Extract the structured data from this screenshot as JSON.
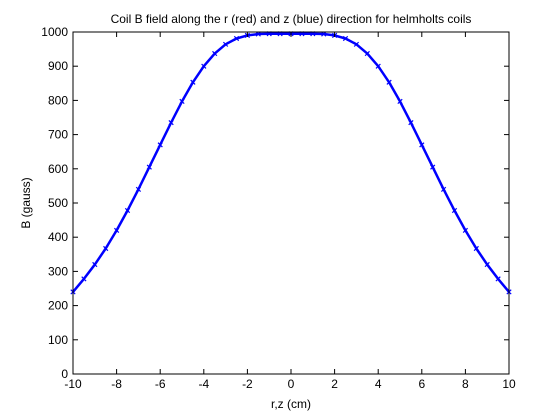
{
  "chart_data": {
    "type": "line",
    "title": "Coil B field along the r (red) and z (blue) direction for helmholts coils",
    "xlabel": "r,z (cm)",
    "ylabel": "B (gauss)",
    "xlim": [
      -10,
      10
    ],
    "ylim": [
      0,
      1000
    ],
    "xticks": [
      "-10",
      "-8",
      "-6",
      "-4",
      "-2",
      "0",
      "2",
      "4",
      "6",
      "8",
      "10"
    ],
    "yticks": [
      "0",
      "100",
      "200",
      "300",
      "400",
      "500",
      "600",
      "700",
      "800",
      "900",
      "1000"
    ],
    "grid": false,
    "legend": "none",
    "series": [
      {
        "color": "#0000ff",
        "marker": "x",
        "x": [
          -10,
          -9.5,
          -9,
          -8.5,
          -8,
          -7.5,
          -7,
          -6.5,
          -6,
          -5.5,
          -5,
          -4.5,
          -4,
          -3.5,
          -3,
          -2.5,
          -2,
          -1.5,
          -1,
          -0.5,
          0,
          0.5,
          1,
          1.5,
          2,
          2.5,
          3,
          3.5,
          4,
          4.5,
          5,
          5.5,
          6,
          6.5,
          7,
          7.5,
          8,
          8.5,
          9,
          9.5,
          10
        ],
        "y": [
          240,
          278,
          320,
          367,
          420,
          478,
          540,
          605,
          670,
          735,
          797,
          853,
          900,
          937,
          964,
          981,
          990,
          994,
          995,
          995,
          995,
          995,
          995,
          994,
          990,
          981,
          964,
          937,
          900,
          853,
          797,
          735,
          670,
          605,
          540,
          478,
          420,
          367,
          320,
          278,
          240
        ]
      }
    ]
  }
}
